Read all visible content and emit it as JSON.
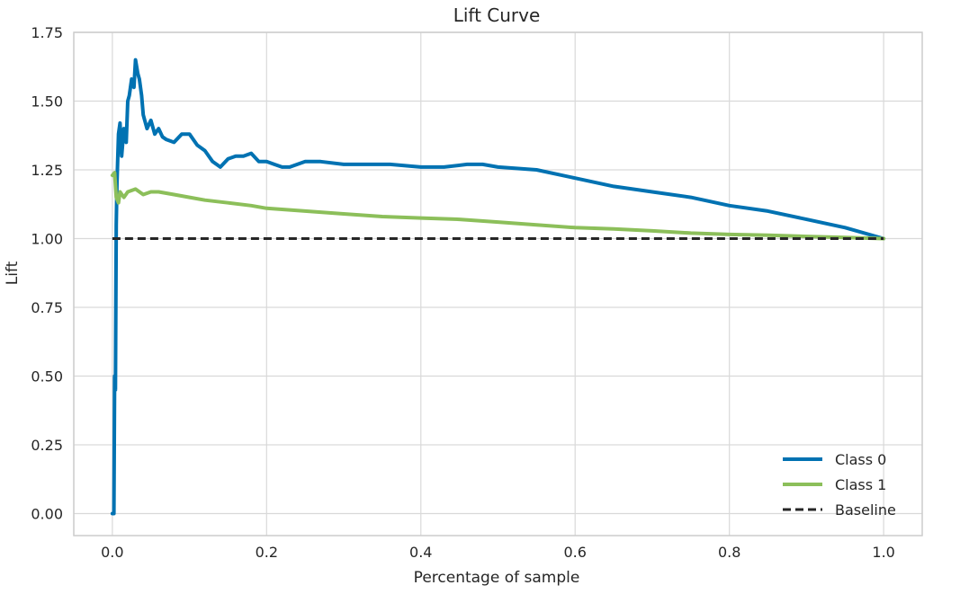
{
  "chart_data": {
    "type": "line",
    "title": "Lift Curve",
    "xlabel": "Percentage of sample",
    "ylabel": "Lift",
    "xlim": [
      -0.05,
      1.05
    ],
    "ylim": [
      -0.08,
      1.75
    ],
    "x_ticks": [
      "0.0",
      "0.2",
      "0.4",
      "0.6",
      "0.8",
      "1.0"
    ],
    "y_ticks": [
      "0.00",
      "0.25",
      "0.50",
      "0.75",
      "1.00",
      "1.25",
      "1.50",
      "1.75"
    ],
    "grid": true,
    "legend_position": "bottom-right",
    "series": [
      {
        "name": "Class 0",
        "color": "#0072b2",
        "style": "solid",
        "x": [
          0.0,
          0.002,
          0.003,
          0.004,
          0.005,
          0.006,
          0.008,
          0.01,
          0.012,
          0.015,
          0.018,
          0.02,
          0.022,
          0.025,
          0.028,
          0.03,
          0.033,
          0.035,
          0.038,
          0.04,
          0.045,
          0.05,
          0.055,
          0.06,
          0.065,
          0.07,
          0.08,
          0.09,
          0.1,
          0.11,
          0.12,
          0.13,
          0.14,
          0.15,
          0.16,
          0.17,
          0.18,
          0.19,
          0.2,
          0.21,
          0.22,
          0.23,
          0.25,
          0.27,
          0.3,
          0.33,
          0.36,
          0.4,
          0.43,
          0.46,
          0.48,
          0.5,
          0.55,
          0.6,
          0.65,
          0.7,
          0.75,
          0.8,
          0.85,
          0.9,
          0.95,
          1.0
        ],
        "y": [
          0.0,
          0.0,
          0.5,
          0.45,
          1.05,
          1.2,
          1.38,
          1.42,
          1.3,
          1.4,
          1.35,
          1.5,
          1.52,
          1.58,
          1.55,
          1.65,
          1.6,
          1.58,
          1.52,
          1.45,
          1.4,
          1.43,
          1.38,
          1.4,
          1.37,
          1.36,
          1.35,
          1.38,
          1.38,
          1.34,
          1.32,
          1.28,
          1.26,
          1.29,
          1.3,
          1.3,
          1.31,
          1.28,
          1.28,
          1.27,
          1.26,
          1.26,
          1.28,
          1.28,
          1.27,
          1.27,
          1.27,
          1.26,
          1.26,
          1.27,
          1.27,
          1.26,
          1.25,
          1.22,
          1.19,
          1.17,
          1.15,
          1.12,
          1.1,
          1.07,
          1.04,
          1.0
        ]
      },
      {
        "name": "Class 1",
        "color": "#8cbf5a",
        "style": "solid",
        "x": [
          0.0,
          0.003,
          0.005,
          0.008,
          0.01,
          0.015,
          0.02,
          0.03,
          0.04,
          0.05,
          0.06,
          0.08,
          0.1,
          0.12,
          0.15,
          0.18,
          0.2,
          0.25,
          0.3,
          0.35,
          0.4,
          0.45,
          0.5,
          0.55,
          0.6,
          0.65,
          0.7,
          0.75,
          0.8,
          0.85,
          0.9,
          0.95,
          1.0
        ],
        "y": [
          1.23,
          1.24,
          1.15,
          1.13,
          1.17,
          1.15,
          1.17,
          1.18,
          1.16,
          1.17,
          1.17,
          1.16,
          1.15,
          1.14,
          1.13,
          1.12,
          1.11,
          1.1,
          1.09,
          1.08,
          1.075,
          1.07,
          1.06,
          1.05,
          1.04,
          1.035,
          1.028,
          1.02,
          1.015,
          1.012,
          1.008,
          1.004,
          1.0
        ]
      },
      {
        "name": "Baseline",
        "color": "#262626",
        "style": "dashed",
        "x": [
          0.0,
          1.0
        ],
        "y": [
          1.0,
          1.0
        ]
      }
    ]
  }
}
